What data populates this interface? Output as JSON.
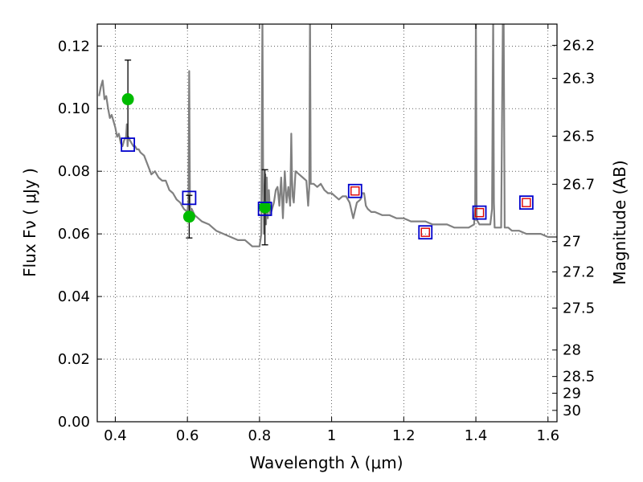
{
  "chart_data": {
    "type": "scatter",
    "title": "",
    "xlabel": "Wavelength  λ (μm)",
    "ylabel": "Flux  Fν  ( μJy )",
    "ylabel_right": "Magnitude (AB)",
    "xlim": [
      0.35,
      1.625
    ],
    "ylim": [
      0.0,
      0.127
    ],
    "grid": true,
    "x_ticks": [
      0.4,
      0.6,
      0.8,
      1.0,
      1.2,
      1.4,
      1.6
    ],
    "x_tick_labels": [
      "0.4",
      "0.6",
      "0.8",
      "1",
      "1.2",
      "1.4",
      "1.6"
    ],
    "y_ticks": [
      0.0,
      0.02,
      0.04,
      0.06,
      0.08,
      0.1,
      0.12
    ],
    "y_tick_labels": [
      "0.00",
      "0.02",
      "0.04",
      "0.06",
      "0.08",
      "0.10",
      "0.12"
    ],
    "right_ticks": [
      {
        "mag": 26.2,
        "label": "26.2"
      },
      {
        "mag": 26.3,
        "label": "26.3"
      },
      {
        "mag": 26.5,
        "label": "26.5"
      },
      {
        "mag": 26.7,
        "label": "26.7"
      },
      {
        "mag": 27.0,
        "label": "27"
      },
      {
        "mag": 27.2,
        "label": "27.2"
      },
      {
        "mag": 27.5,
        "label": "27.5"
      },
      {
        "mag": 28.0,
        "label": "28"
      },
      {
        "mag": 28.5,
        "label": "28.5"
      },
      {
        "mag": 29.0,
        "label": "29"
      },
      {
        "mag": 30.0,
        "label": "30"
      }
    ],
    "series": [
      {
        "name": "model_sed",
        "style": "line",
        "color": "#808080",
        "x": [
          0.355,
          0.36,
          0.365,
          0.37,
          0.375,
          0.38,
          0.385,
          0.39,
          0.395,
          0.4,
          0.405,
          0.41,
          0.415,
          0.42,
          0.425,
          0.43,
          0.432,
          0.434,
          0.436,
          0.44,
          0.445,
          0.45,
          0.455,
          0.46,
          0.465,
          0.47,
          0.48,
          0.49,
          0.5,
          0.51,
          0.52,
          0.53,
          0.54,
          0.55,
          0.56,
          0.57,
          0.58,
          0.59,
          0.6,
          0.603,
          0.605,
          0.607,
          0.609,
          0.612,
          0.62,
          0.64,
          0.66,
          0.68,
          0.7,
          0.72,
          0.74,
          0.76,
          0.78,
          0.8,
          0.805,
          0.808,
          0.81,
          0.812,
          0.814,
          0.816,
          0.818,
          0.82,
          0.823,
          0.826,
          0.83,
          0.835,
          0.84,
          0.845,
          0.85,
          0.855,
          0.86,
          0.865,
          0.87,
          0.875,
          0.88,
          0.885,
          0.888,
          0.89,
          0.892,
          0.895,
          0.9,
          0.91,
          0.92,
          0.93,
          0.935,
          0.938,
          0.94,
          0.942,
          0.945,
          0.95,
          0.96,
          0.97,
          0.98,
          0.99,
          1.0,
          1.01,
          1.02,
          1.03,
          1.04,
          1.05,
          1.06,
          1.07,
          1.08,
          1.085,
          1.09,
          1.095,
          1.1,
          1.11,
          1.12,
          1.14,
          1.16,
          1.18,
          1.2,
          1.22,
          1.24,
          1.26,
          1.28,
          1.3,
          1.32,
          1.34,
          1.36,
          1.38,
          1.395,
          1.398,
          1.4,
          1.402,
          1.405,
          1.41,
          1.42,
          1.43,
          1.44,
          1.445,
          1.448,
          1.45,
          1.452,
          1.455,
          1.46,
          1.47,
          1.475,
          1.477,
          1.48,
          1.49,
          1.5,
          1.52,
          1.54,
          1.56,
          1.58,
          1.6,
          1.625
        ],
        "values": [
          0.104,
          0.107,
          0.109,
          0.103,
          0.104,
          0.1,
          0.097,
          0.098,
          0.096,
          0.094,
          0.091,
          0.092,
          0.089,
          0.088,
          0.09,
          0.091,
          0.095,
          0.088,
          0.091,
          0.09,
          0.089,
          0.088,
          0.088,
          0.087,
          0.087,
          0.086,
          0.085,
          0.082,
          0.079,
          0.08,
          0.078,
          0.077,
          0.077,
          0.074,
          0.073,
          0.071,
          0.07,
          0.068,
          0.067,
          0.071,
          0.112,
          0.07,
          0.067,
          0.068,
          0.066,
          0.064,
          0.063,
          0.061,
          0.06,
          0.059,
          0.058,
          0.058,
          0.056,
          0.056,
          0.06,
          0.13,
          0.078,
          0.06,
          0.07,
          0.079,
          0.063,
          0.078,
          0.065,
          0.074,
          0.066,
          0.068,
          0.07,
          0.074,
          0.075,
          0.069,
          0.078,
          0.065,
          0.08,
          0.07,
          0.075,
          0.069,
          0.092,
          0.078,
          0.072,
          0.07,
          0.08,
          0.079,
          0.078,
          0.077,
          0.069,
          0.075,
          0.13,
          0.076,
          0.076,
          0.076,
          0.075,
          0.076,
          0.074,
          0.073,
          0.073,
          0.072,
          0.071,
          0.072,
          0.072,
          0.07,
          0.065,
          0.07,
          0.071,
          0.073,
          0.073,
          0.069,
          0.068,
          0.067,
          0.067,
          0.066,
          0.066,
          0.065,
          0.065,
          0.064,
          0.064,
          0.064,
          0.063,
          0.063,
          0.063,
          0.062,
          0.062,
          0.062,
          0.063,
          0.068,
          0.13,
          0.065,
          0.064,
          0.063,
          0.063,
          0.063,
          0.063,
          0.068,
          0.13,
          0.07,
          0.062,
          0.062,
          0.062,
          0.062,
          0.13,
          0.13,
          0.062,
          0.062,
          0.061,
          0.061,
          0.06,
          0.06,
          0.06,
          0.059,
          0.059
        ]
      },
      {
        "name": "measured_flux",
        "style": "marker-circle",
        "color": "#00bb00",
        "x": [
          0.435,
          0.605,
          0.815
        ],
        "values": [
          0.103,
          0.0655,
          0.0685
        ],
        "yerr": [
          0.0125,
          0.0068,
          0.012
        ]
      },
      {
        "name": "model_photometry",
        "style": "marker-square",
        "color": "#0000cc",
        "inner_color": "#dd0000",
        "x": [
          0.435,
          0.605,
          0.815,
          1.065,
          1.26,
          1.41,
          1.54
        ],
        "values": [
          0.0885,
          0.0715,
          0.068,
          0.0737,
          0.0605,
          0.0668,
          0.07
        ]
      }
    ]
  }
}
